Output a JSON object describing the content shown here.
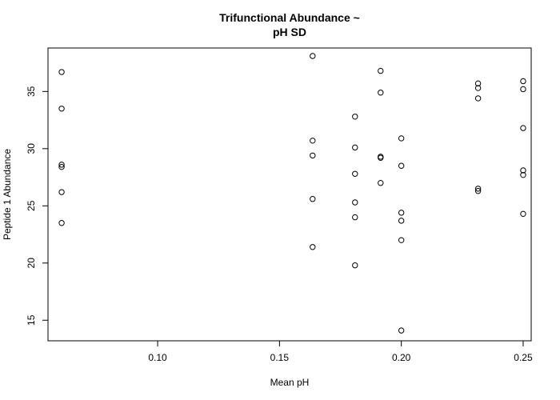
{
  "chart_data": {
    "type": "scatter",
    "title": [
      "Trifunctional Abundance ~",
      "pH SD"
    ],
    "xlabel": "Mean pH",
    "ylabel": "Peptide 1 Abundance",
    "xlim": [
      0.055,
      0.2533
    ],
    "ylim": [
      13.2,
      38.8
    ],
    "xticks": [
      0.1,
      0.15,
      0.2,
      0.25
    ],
    "xtick_labels": [
      "0.10",
      "0.15",
      "0.20",
      "0.25"
    ],
    "yticks": [
      15,
      20,
      25,
      30,
      35
    ],
    "ytick_labels": [
      "15",
      "20",
      "25",
      "30",
      "35"
    ],
    "grid": false,
    "legend": "none",
    "points": [
      {
        "x": 0.0606,
        "y": 36.7
      },
      {
        "x": 0.0606,
        "y": 33.5
      },
      {
        "x": 0.0606,
        "y": 28.6
      },
      {
        "x": 0.0606,
        "y": 28.4
      },
      {
        "x": 0.0606,
        "y": 26.2
      },
      {
        "x": 0.0606,
        "y": 23.5
      },
      {
        "x": 0.1636,
        "y": 38.1
      },
      {
        "x": 0.1636,
        "y": 30.7
      },
      {
        "x": 0.1636,
        "y": 29.4
      },
      {
        "x": 0.1636,
        "y": 25.6
      },
      {
        "x": 0.1636,
        "y": 21.4
      },
      {
        "x": 0.181,
        "y": 32.8
      },
      {
        "x": 0.181,
        "y": 30.1
      },
      {
        "x": 0.181,
        "y": 27.8
      },
      {
        "x": 0.181,
        "y": 25.3
      },
      {
        "x": 0.181,
        "y": 24.0
      },
      {
        "x": 0.181,
        "y": 19.8
      },
      {
        "x": 0.1915,
        "y": 36.8
      },
      {
        "x": 0.1915,
        "y": 34.9
      },
      {
        "x": 0.1915,
        "y": 29.3
      },
      {
        "x": 0.1915,
        "y": 29.2
      },
      {
        "x": 0.1915,
        "y": 27.0
      },
      {
        "x": 0.2,
        "y": 30.9
      },
      {
        "x": 0.2,
        "y": 28.5
      },
      {
        "x": 0.2,
        "y": 24.4
      },
      {
        "x": 0.2,
        "y": 23.7
      },
      {
        "x": 0.2,
        "y": 22.0
      },
      {
        "x": 0.2,
        "y": 14.1
      },
      {
        "x": 0.2315,
        "y": 35.7
      },
      {
        "x": 0.2315,
        "y": 35.3
      },
      {
        "x": 0.2315,
        "y": 34.4
      },
      {
        "x": 0.2315,
        "y": 26.5
      },
      {
        "x": 0.2315,
        "y": 26.3
      },
      {
        "x": 0.25,
        "y": 35.9
      },
      {
        "x": 0.25,
        "y": 35.2
      },
      {
        "x": 0.25,
        "y": 31.8
      },
      {
        "x": 0.25,
        "y": 28.1
      },
      {
        "x": 0.25,
        "y": 27.7
      },
      {
        "x": 0.25,
        "y": 24.3
      }
    ]
  }
}
